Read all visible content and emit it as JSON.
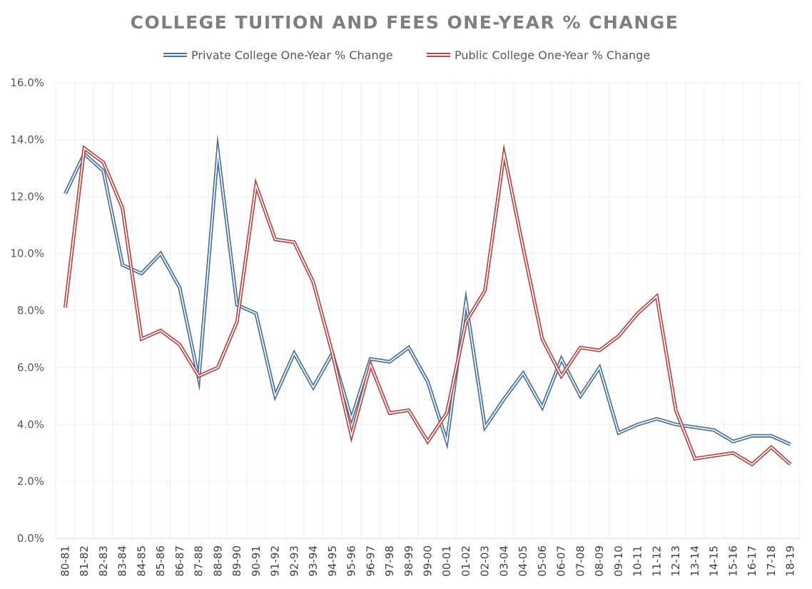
{
  "chart_data": {
    "type": "line",
    "title": "COLLEGE TUITION AND FEES ONE-YEAR % CHANGE",
    "xlabel": "",
    "ylabel": "",
    "ylim": [
      0,
      16
    ],
    "y_ticks": [
      "0.0%",
      "2.0%",
      "4.0%",
      "6.0%",
      "8.0%",
      "10.0%",
      "12.0%",
      "14.0%",
      "16.0%"
    ],
    "y_tick_values": [
      0,
      2,
      4,
      6,
      8,
      10,
      12,
      14,
      16
    ],
    "grid": true,
    "legend_position": "top",
    "x": [
      "80-81",
      "81-82",
      "82-83",
      "83-84",
      "84-85",
      "85-86",
      "86-87",
      "87-88",
      "88-89",
      "89-90",
      "90-91",
      "91-92",
      "92-93",
      "93-94",
      "94-95",
      "95-96",
      "96-97",
      "97-98",
      "98-99",
      "99-00",
      "00-01",
      "01-02",
      "02-03",
      "03-04",
      "04-05",
      "05-06",
      "06-07",
      "07-08",
      "08-09",
      "09-10",
      "10-11",
      "11-12",
      "12-13",
      "13-14",
      "14-15",
      "15-16",
      "16-17",
      "17-18",
      "18-19"
    ],
    "series": [
      {
        "name": "Private College One-Year % Change",
        "color": "#4a7298",
        "values": [
          12.1,
          13.5,
          12.9,
          9.6,
          9.3,
          10.0,
          8.8,
          5.6,
          13.6,
          8.2,
          7.9,
          5.0,
          6.5,
          5.3,
          6.5,
          4.2,
          6.3,
          6.2,
          6.7,
          5.5,
          3.4,
          8.3,
          3.9,
          4.9,
          5.8,
          4.6,
          6.3,
          5.0,
          6.0,
          3.7,
          4.0,
          4.2,
          4.0,
          3.9,
          3.8,
          3.4,
          3.6,
          3.6,
          3.3
        ]
      },
      {
        "name": "Public College One-Year % Change",
        "color": "#b04a4a",
        "values": [
          8.1,
          13.7,
          13.2,
          11.6,
          7.0,
          7.3,
          6.8,
          5.7,
          6.0,
          7.6,
          12.4,
          10.5,
          10.4,
          9.0,
          6.5,
          3.6,
          6.1,
          4.4,
          4.5,
          3.4,
          4.4,
          7.6,
          8.7,
          13.5,
          10.2,
          7.0,
          5.7,
          6.7,
          6.6,
          7.1,
          7.9,
          8.5,
          4.5,
          2.8,
          2.9,
          3.0,
          2.6,
          3.2,
          2.6
        ]
      }
    ]
  }
}
